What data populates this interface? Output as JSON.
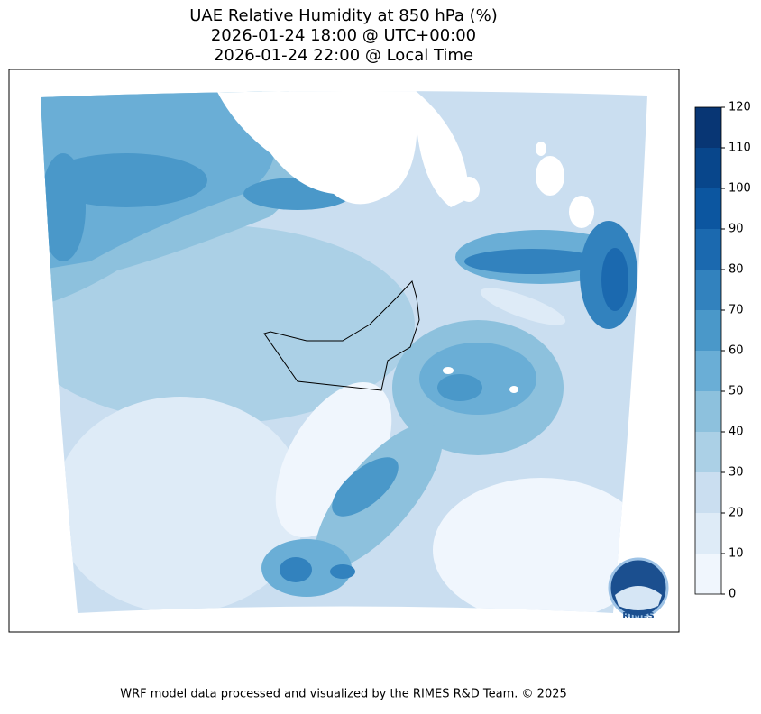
{
  "header": {
    "title_lines": [
      "UAE Relative Humidity at 850 hPa (%)",
      "2026-01-24 18:00 @ UTC+00:00",
      "2026-01-24 22:00 @ Local Time"
    ]
  },
  "colorbar": {
    "levels": [
      0,
      10,
      20,
      30,
      40,
      50,
      60,
      70,
      80,
      90,
      100,
      110,
      120
    ],
    "colors": [
      "#f0f6fd",
      "#deebf7",
      "#cadef0",
      "#abd0e6",
      "#8dc1dd",
      "#6aaed6",
      "#4a98c9",
      "#3282be",
      "#1b69af",
      "#0c56a0",
      "#08468b",
      "#083674"
    ]
  },
  "logo": {
    "text": "RIMES"
  },
  "footer": {
    "text": "WRF model data processed and visualized by the RIMES R&D Team. © 2025"
  }
}
